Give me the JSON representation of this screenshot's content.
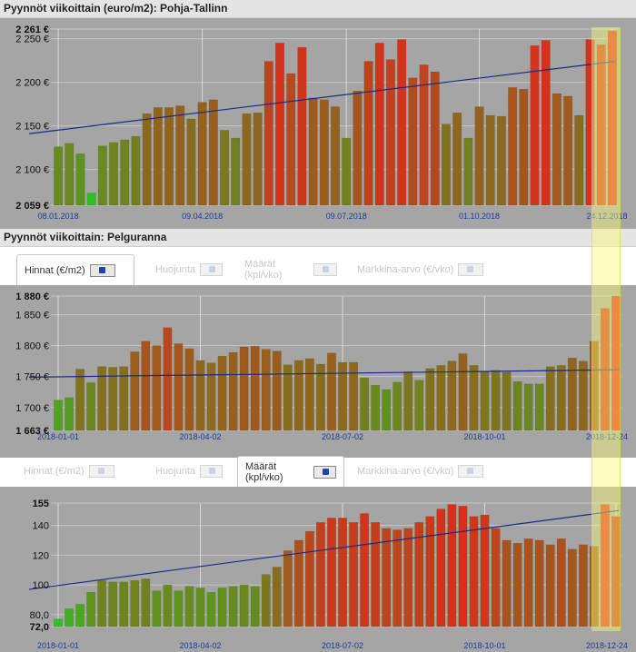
{
  "sections": {
    "top_title": "Pyynnöt viikoittain (euro/m2): Pohja-Tallinn",
    "bottom_title": "Pyynnöt viikoittain: Pelguranna"
  },
  "tabs_mid": [
    {
      "label": "Hinnat (€/m2)",
      "active": true
    },
    {
      "label": "Huojunta",
      "active": false
    },
    {
      "label": "Määrät (kpl/vko)",
      "active": false
    },
    {
      "label": "Markkina-arvo (€/vko)",
      "active": false
    }
  ],
  "tabs_low": [
    {
      "label": "Hinnat (€/m2)",
      "active": false
    },
    {
      "label": "Huojunta",
      "active": false
    },
    {
      "label": "Määrät (kpl/vko)",
      "active": true
    },
    {
      "label": "Markkina-arvo (€/vko)",
      "active": false
    }
  ],
  "colors": {
    "plot_background": "#a5a5a5",
    "low_bar": "#22cc22",
    "mid_bar": "#8a6a1e",
    "high_bar": "#e02a1a",
    "trend_line": "#1a2a8a",
    "highlight": "#f7ff78"
  },
  "chart_data": [
    {
      "type": "bar",
      "title": "Pyynnöt viikoittain (euro/m2): Pohja-Tallinn",
      "ylim": [
        2059,
        2261
      ],
      "yticks": [
        2059,
        2100,
        2150,
        2200,
        2250,
        2261
      ],
      "ytick_labels": [
        "2 059 €",
        "2 100 €",
        "2 150 €",
        "2 200 €",
        "2 250 €",
        "2 261 €"
      ],
      "bold_ticks": [
        2059,
        2261
      ],
      "x_labels": [
        {
          "index": 0,
          "label": "08.01.2018"
        },
        {
          "index": 13,
          "label": "09.04.2018"
        },
        {
          "index": 26,
          "label": "09.07.2018"
        },
        {
          "index": 38,
          "label": "01.10.2018"
        },
        {
          "index": 50,
          "label": "24.12.2018"
        }
      ],
      "values": [
        2126,
        2130,
        2118,
        2073,
        2127,
        2131,
        2134,
        2138,
        2164,
        2171,
        2171,
        2173,
        2158,
        2177,
        2180,
        2145,
        2136,
        2164,
        2165,
        2224,
        2245,
        2210,
        2240,
        2182,
        2180,
        2172,
        2136,
        2190,
        2224,
        2245,
        2226,
        2249,
        2205,
        2220,
        2212,
        2152,
        2165,
        2136,
        2172,
        2162,
        2161,
        2194,
        2192,
        2242,
        2248,
        2187,
        2184,
        2162,
        2249,
        2243,
        2259
      ],
      "trend": [
        2141,
        2224
      ],
      "grid_x_indices": [
        0,
        13,
        26,
        38,
        50
      ]
    },
    {
      "type": "bar",
      "title": "Pyynnöt viikoittain: Pelguranna",
      "ylim": [
        1663,
        1880
      ],
      "yticks": [
        1663,
        1700,
        1750,
        1800,
        1850,
        1880
      ],
      "ytick_labels": [
        "1 663 €",
        "1 700 €",
        "1 750 €",
        "1 800 €",
        "1 850 €",
        "1 880 €"
      ],
      "bold_ticks": [
        1663,
        1880
      ],
      "x_labels": [
        {
          "index": 0,
          "label": "2018-01-01"
        },
        {
          "index": 13,
          "label": "2018-04-02"
        },
        {
          "index": 26,
          "label": "2018-07-02"
        },
        {
          "index": 39,
          "label": "2018-10-01"
        },
        {
          "index": 51,
          "label": "2018-12-24"
        }
      ],
      "values": [
        1712,
        1716,
        1762,
        1740,
        1766,
        1765,
        1766,
        1790,
        1807,
        1800,
        1829,
        1803,
        1795,
        1776,
        1772,
        1783,
        1789,
        1798,
        1799,
        1794,
        1791,
        1769,
        1776,
        1779,
        1770,
        1788,
        1773,
        1773,
        1748,
        1736,
        1729,
        1741,
        1758,
        1744,
        1763,
        1768,
        1775,
        1787,
        1768,
        1758,
        1760,
        1757,
        1742,
        1738,
        1738,
        1766,
        1768,
        1780,
        1775,
        1807,
        1860,
        1880
      ],
      "trend": [
        1749,
        1761
      ],
      "grid_x_indices": [
        0,
        13,
        26,
        39,
        51
      ]
    },
    {
      "type": "bar",
      "title": "Määrät (kpl/vko)",
      "ylim": [
        72,
        155
      ],
      "yticks": [
        72,
        80,
        100,
        120,
        140,
        155
      ],
      "ytick_labels": [
        "72,0",
        "80,0",
        "100",
        "120",
        "140",
        "155"
      ],
      "bold_ticks": [
        72,
        155
      ],
      "x_labels": [
        {
          "index": 0,
          "label": "2018-01-01"
        },
        {
          "index": 13,
          "label": "2018-04-02"
        },
        {
          "index": 26,
          "label": "2018-07-02"
        },
        {
          "index": 39,
          "label": "2018-10-01"
        },
        {
          "index": 51,
          "label": "2018-12-24"
        }
      ],
      "values": [
        77,
        84,
        87,
        95,
        103,
        102,
        102,
        103,
        104,
        96,
        100,
        96,
        99,
        98,
        95,
        98,
        99,
        100,
        99,
        107,
        112,
        123,
        130,
        136,
        142,
        145,
        145,
        142,
        148,
        142,
        138,
        137,
        138,
        142,
        146,
        151,
        154,
        153,
        146,
        147,
        138,
        130,
        128,
        131,
        130,
        127,
        131,
        124,
        127,
        126,
        154,
        146
      ],
      "trend": [
        97,
        150
      ],
      "grid_x_indices": [
        0,
        13,
        26,
        39,
        51
      ]
    }
  ]
}
